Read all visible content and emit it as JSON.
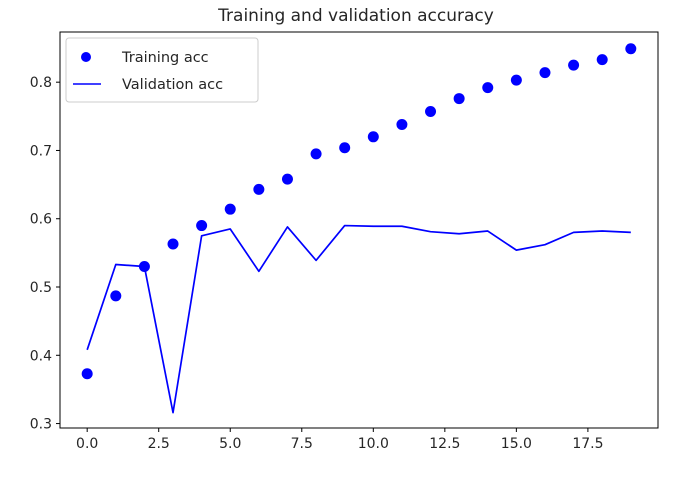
{
  "chart_data": {
    "type": "line",
    "title": "Training and validation accuracy",
    "xlabel": "",
    "ylabel": "",
    "xlim": [
      -0.95,
      19.95
    ],
    "ylim": [
      0.2935,
      0.8735
    ],
    "xticks": [
      0.0,
      2.5,
      5.0,
      7.5,
      10.0,
      12.5,
      15.0,
      17.5
    ],
    "xtick_labels": [
      "0.0",
      "2.5",
      "5.0",
      "7.5",
      "10.0",
      "12.5",
      "15.0",
      "17.5"
    ],
    "yticks": [
      0.3,
      0.4,
      0.5,
      0.6,
      0.7,
      0.8
    ],
    "ytick_labels": [
      "0.3",
      "0.4",
      "0.5",
      "0.6",
      "0.7",
      "0.8"
    ],
    "grid": false,
    "legend_position": "top-left",
    "x": [
      0,
      1,
      2,
      3,
      4,
      5,
      6,
      7,
      8,
      9,
      10,
      11,
      12,
      13,
      14,
      15,
      16,
      17,
      18,
      19
    ],
    "series": [
      {
        "name": "Training acc",
        "style": "scatter",
        "color": "#0000ff",
        "values": [
          0.373,
          0.487,
          0.53,
          0.563,
          0.59,
          0.614,
          0.643,
          0.658,
          0.695,
          0.704,
          0.72,
          0.738,
          0.757,
          0.776,
          0.792,
          0.803,
          0.814,
          0.825,
          0.833,
          0.849
        ]
      },
      {
        "name": "Validation acc",
        "style": "line",
        "color": "#0000ff",
        "values": [
          0.408,
          0.533,
          0.53,
          0.316,
          0.575,
          0.585,
          0.523,
          0.588,
          0.539,
          0.59,
          0.589,
          0.589,
          0.581,
          0.578,
          0.582,
          0.554,
          0.562,
          0.58,
          0.582,
          0.58
        ]
      }
    ]
  }
}
